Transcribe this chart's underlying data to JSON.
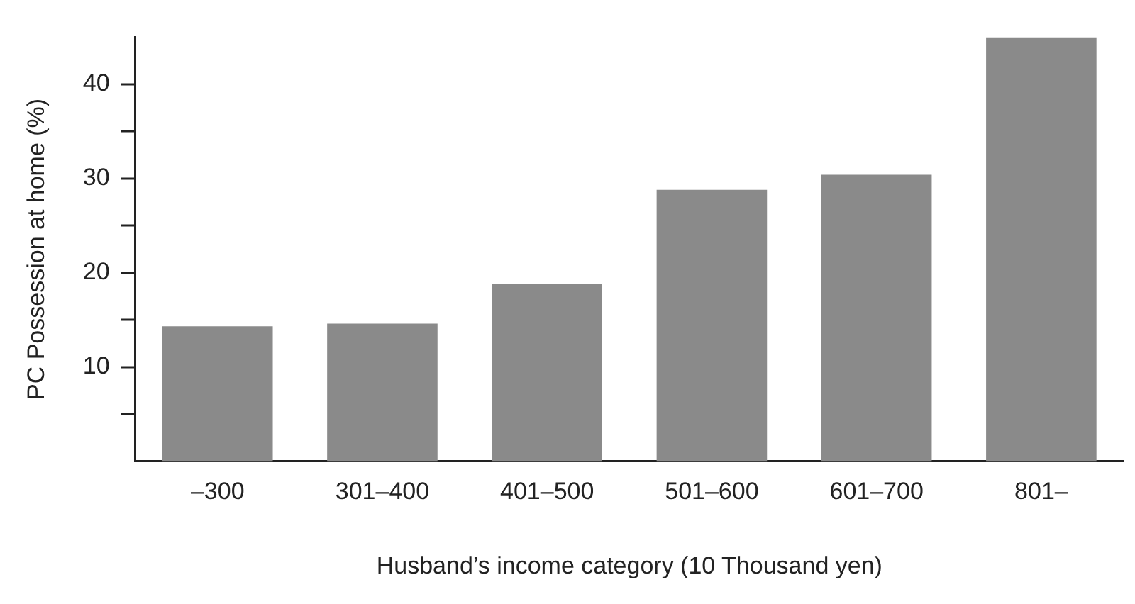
{
  "chart_data": {
    "type": "bar",
    "xlabel": "Husband’s income category (10 Thousand yen)",
    "ylabel": "PC Possession at home (%)",
    "categories": [
      "–300",
      "301–400",
      "401–500",
      "501–600",
      "601–700",
      "801–"
    ],
    "values": [
      14.3,
      14.6,
      18.8,
      28.8,
      30.4,
      45.0
    ],
    "color": "#8a8a8a",
    "ylim": [
      0,
      45
    ],
    "yticks": [
      {
        "value": 5,
        "label": null
      },
      10,
      {
        "value": 15,
        "label": null
      },
      20,
      {
        "value": 25,
        "label": null
      },
      30,
      {
        "value": 35,
        "label": null
      },
      40
    ],
    "grid": false
  }
}
